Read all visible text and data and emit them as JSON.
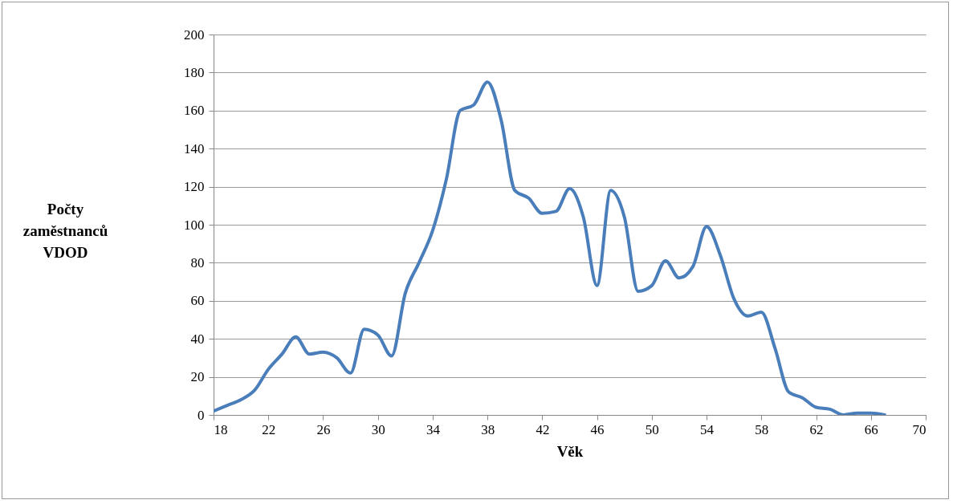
{
  "chart_data": {
    "type": "line",
    "xlabel": "Věk",
    "ylabel": "Počty zaměstnanců VDOD",
    "x": [
      18,
      19,
      20,
      21,
      22,
      23,
      24,
      25,
      26,
      27,
      28,
      29,
      30,
      31,
      32,
      33,
      34,
      35,
      36,
      37,
      38,
      39,
      40,
      41,
      42,
      43,
      44,
      45,
      46,
      47,
      48,
      49,
      50,
      51,
      52,
      53,
      54,
      55,
      56,
      57,
      58,
      59,
      60,
      61,
      62,
      63,
      64,
      65,
      66,
      67
    ],
    "series": [
      {
        "color": "#4a7ebb",
        "values": [
          2,
          5,
          8,
          13,
          24,
          32,
          41,
          32,
          33,
          30,
          22,
          45,
          42,
          31,
          64,
          80,
          97,
          124,
          160,
          163,
          175,
          155,
          118,
          114,
          106,
          107,
          119,
          104,
          68,
          118,
          104,
          65,
          68,
          81,
          72,
          78,
          99,
          84,
          61,
          52,
          54,
          35,
          12,
          9,
          4,
          3,
          0,
          1,
          1,
          0
        ]
      }
    ],
    "xlim": [
      18,
      70
    ],
    "xticks": [
      18,
      22,
      26,
      30,
      34,
      38,
      42,
      46,
      50,
      54,
      58,
      62,
      66,
      70
    ],
    "ylim": [
      0,
      200
    ],
    "yticks": [
      0,
      20,
      40,
      60,
      80,
      100,
      120,
      140,
      160,
      180,
      200
    ],
    "grid": "y",
    "marker": "none",
    "line_style": "solid"
  }
}
